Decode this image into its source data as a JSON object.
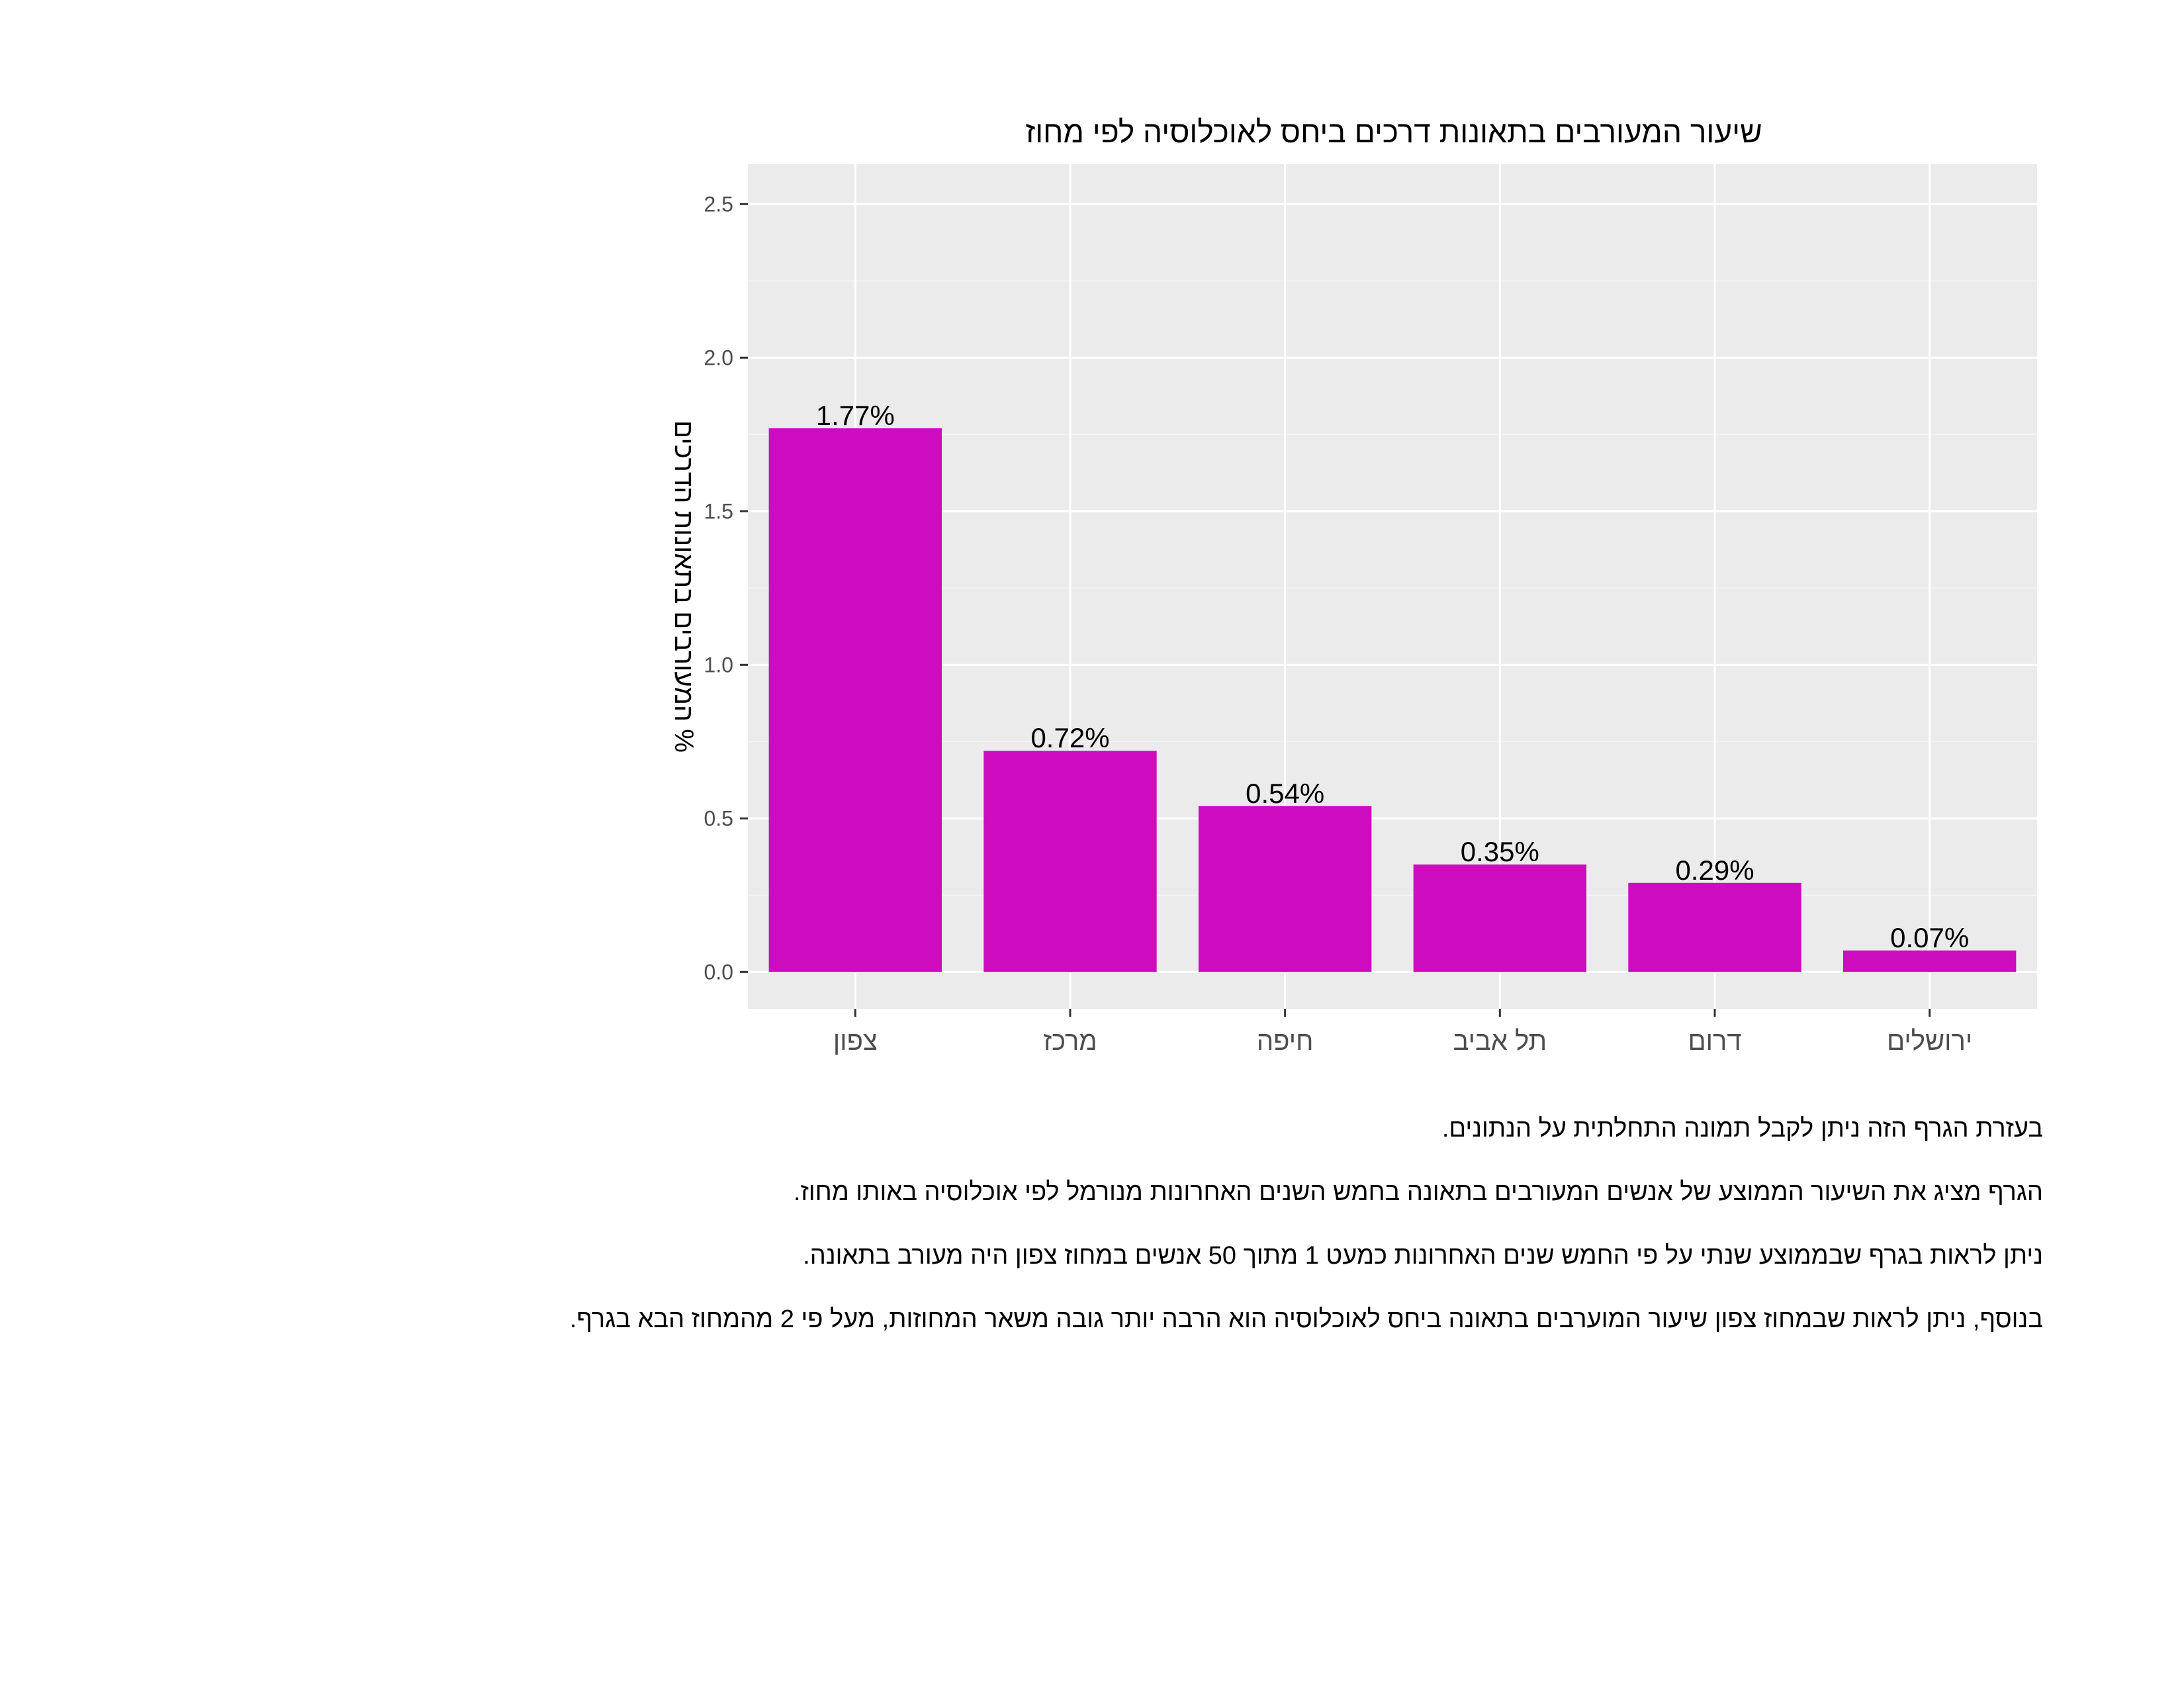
{
  "chart_data": {
    "type": "bar",
    "title": "שיעור המעורבים בתאונות דרכים ביחס לאוכלוסיה לפי מחוז",
    "xlabel": "",
    "ylabel": "% המעורבים בתאונות הדרכים",
    "categories": [
      "צפון",
      "מרכז",
      "חיפה",
      "תל אביב",
      "דרום",
      "ירושלים"
    ],
    "values": [
      1.77,
      0.72,
      0.54,
      0.35,
      0.29,
      0.07
    ],
    "data_labels": [
      "1.77%",
      "0.72%",
      "0.54%",
      "0.35%",
      "0.29%",
      "0.07%"
    ],
    "ylim": [
      -0.12,
      2.63
    ],
    "yticks": [
      0.0,
      0.5,
      1.0,
      1.5,
      2.0,
      2.5
    ],
    "ytick_labels": [
      "0.0",
      "0.5",
      "1.0",
      "1.5",
      "2.0",
      "2.5"
    ],
    "grid": true,
    "bar_color": "#CC0CBE",
    "panel_background": "#EBEBEB"
  },
  "description": {
    "lines": [
      "בעזרת הגרף הזה ניתן לקבל תמונה התחלתית על הנתונים.",
      "הגרף מציג את השיעור הממוצע של אנשים המעורבים בתאונה בחמש השנים האחרונות מנורמל לפי אוכלוסיה באותו מחוז.",
      "ניתן לראות בגרף שבממוצע שנתי על פי החמש שנים האחרונות כמעט 1 מתוך 50 אנשים במחוז צפון היה מעורב בתאונה.",
      "בנוסף, ניתן לראות שבמחוז צפון שיעור המוערבים בתאונה ביחס לאוכלוסיה הוא הרבה יותר גובה משאר המחוזות, מעל פי 2 מהמחוז הבא בגרף."
    ]
  }
}
